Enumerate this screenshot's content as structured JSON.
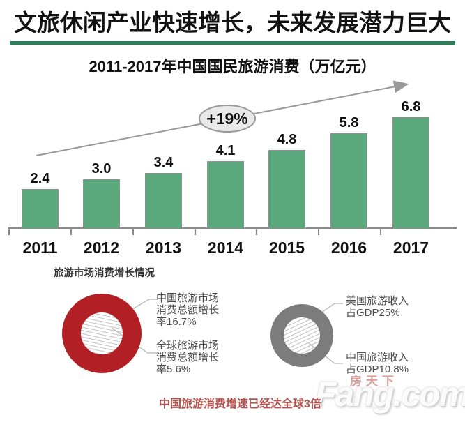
{
  "header": {
    "title": "文旅休闲产业快速增长，未来发展潜力巨大"
  },
  "theme": {
    "rule_green": "#2a7e58",
    "bar_green": "#5ba87d",
    "donut_red": "#b21f24",
    "donut_gray": "#7c7c7c",
    "note_red": "#b5524e"
  },
  "chart_data": [
    {
      "type": "bar",
      "title": "2011-2017年中国国民旅游消费（万亿元）",
      "categories": [
        "2011",
        "2012",
        "2013",
        "2014",
        "2015",
        "2016",
        "2017"
      ],
      "values": [
        2.4,
        3.0,
        3.4,
        4.1,
        4.8,
        5.8,
        6.8
      ],
      "value_labels": [
        "2.4",
        "3.0",
        "3.4",
        "4.1",
        "4.8",
        "5.8",
        "6.8"
      ],
      "ylabel": "万亿元",
      "ylim": [
        0,
        7.5
      ],
      "grid": false,
      "annotation": "+19%",
      "bar_color": "#5ba87d",
      "trend_arrow": true
    },
    {
      "type": "donut",
      "ring_color": "#b21f24",
      "segments": [
        {
          "label": "中国旅游市场消费总额增长率",
          "value": 16.7,
          "unit": "%"
        },
        {
          "label": "全球旅游市场消费总额增长率",
          "value": 5.6,
          "unit": "%"
        }
      ],
      "callouts": [
        "中国旅游市场\n消费总额增长\n率16.7%",
        "全球旅游市场\n消费总额增长\n率5.6%"
      ]
    },
    {
      "type": "donut",
      "ring_color": "#7c7c7c",
      "segments": [
        {
          "label": "美国旅游收入占GDP",
          "value": 25,
          "unit": "%"
        },
        {
          "label": "中国旅游收入占GDP",
          "value": 10.8,
          "unit": "%"
        }
      ],
      "callouts": [
        "美国旅游收入\n占GDP25%",
        "中国旅游收入\n占GDP10.8%"
      ]
    }
  ],
  "growth_section": {
    "heading": "旅游市场消费增长情况",
    "note": "中国旅游消费增速已经达全球3倍"
  },
  "watermark": {
    "brand_cn": "房天下",
    "brand_en": "Fang.com"
  }
}
